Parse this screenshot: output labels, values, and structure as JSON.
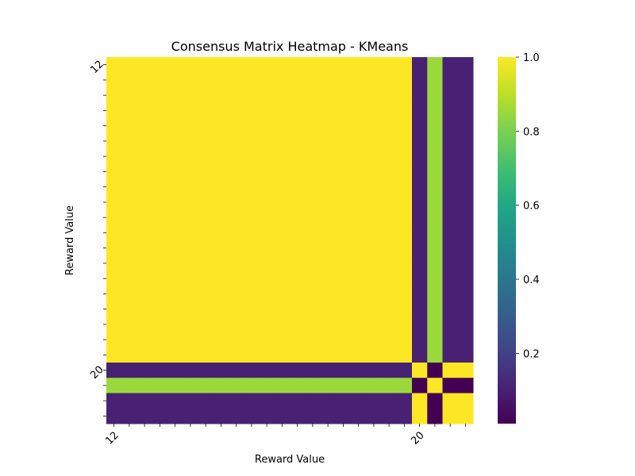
{
  "chart_data": {
    "type": "heatmap",
    "title": "Consensus Matrix Heatmap - KMeans",
    "xlabel": "Reward Value",
    "ylabel": "Reward Value",
    "n": 24,
    "x_tick_labels": [
      {
        "index": 0,
        "label": "12"
      },
      {
        "index": 20,
        "label": "20"
      }
    ],
    "y_tick_labels": [
      {
        "index": 0,
        "label": "12"
      },
      {
        "index": 20,
        "label": "20"
      }
    ],
    "colormap": "viridis",
    "colorbar": {
      "range": [
        0.01,
        1.0
      ],
      "ticks": [
        0.2,
        0.4,
        0.6,
        0.8,
        1.0
      ],
      "tick_labels": [
        "0.2",
        "0.4",
        "0.6",
        "0.8",
        "1.0"
      ]
    },
    "blocks": {
      "rows_0_19_cols_0_19": 1.0,
      "rows_0_19_col_20": 0.1,
      "rows_0_19_col_21": 0.85,
      "rows_0_19_cols_22_23": 0.1,
      "row_20_col_20": 1.0,
      "row_20_col_21": 0.01,
      "row_20_cols_22_23": 1.0,
      "row_21_col_20": 0.01,
      "row_21_col_21": 1.0,
      "row_21_cols_22_23": 0.01,
      "rows_22_23_col_20": 1.0,
      "rows_22_23_col_21": 0.01,
      "rows_22_23_cols_22_23": 1.0
    },
    "cluster_values": [
      [
        1.0,
        0.1,
        0.85,
        0.1,
        0.1
      ],
      [
        0.1,
        1.0,
        0.01,
        1.0,
        1.0
      ],
      [
        0.85,
        0.01,
        1.0,
        0.01,
        0.01
      ],
      [
        0.1,
        1.0,
        0.01,
        1.0,
        1.0
      ],
      [
        0.1,
        1.0,
        0.01,
        1.0,
        1.0
      ]
    ],
    "row_cluster": [
      0,
      0,
      0,
      0,
      0,
      0,
      0,
      0,
      0,
      0,
      0,
      0,
      0,
      0,
      0,
      0,
      0,
      0,
      0,
      0,
      1,
      2,
      3,
      4
    ]
  }
}
